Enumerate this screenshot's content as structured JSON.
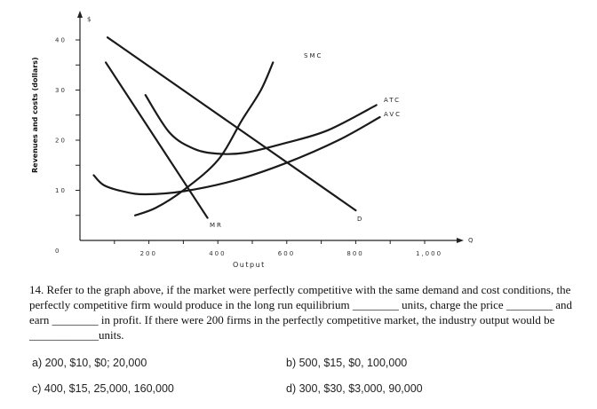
{
  "chart_data": {
    "type": "line",
    "y_axis_symbol": "$",
    "ylabel": "Revenues and costs (dollars)",
    "xlabel": "Output",
    "x_axis_symbol": "Q",
    "y_ticks": [
      "0",
      "10",
      "20",
      "30",
      "40"
    ],
    "x_ticks": [
      "200",
      "400",
      "600",
      "800",
      "1,000"
    ],
    "xlim": [
      0,
      1100
    ],
    "ylim": [
      0,
      45
    ],
    "series": [
      {
        "name": "SMC",
        "points": [
          [
            160,
            5
          ],
          [
            220,
            6.5
          ],
          [
            300,
            10
          ],
          [
            400,
            16
          ],
          [
            470,
            24
          ],
          [
            525,
            30
          ],
          [
            560,
            35.5
          ]
        ]
      },
      {
        "name": "ATC",
        "points": [
          [
            190,
            29
          ],
          [
            260,
            21.5
          ],
          [
            330,
            18.3
          ],
          [
            400,
            17.3
          ],
          [
            480,
            17.5
          ],
          [
            600,
            19.5
          ],
          [
            720,
            22
          ],
          [
            860,
            27
          ]
        ]
      },
      {
        "name": "AVC",
        "points": [
          [
            40,
            13
          ],
          [
            70,
            11
          ],
          [
            130,
            9.7
          ],
          [
            190,
            9.2
          ],
          [
            300,
            9.8
          ],
          [
            450,
            12
          ],
          [
            600,
            15.5
          ],
          [
            750,
            20
          ],
          [
            870,
            24.6
          ]
        ]
      },
      {
        "name": "D",
        "points": [
          [
            80,
            40.5
          ],
          [
            800,
            6
          ]
        ]
      },
      {
        "name": "MR",
        "points": [
          [
            75,
            35.5
          ],
          [
            370,
            4.5
          ]
        ]
      }
    ],
    "labels": {
      "SMC": "SMC",
      "ATC": "ATC",
      "AVC": "AVC",
      "D": "D",
      "MR": "MR"
    }
  },
  "question": {
    "text": "14. Refer to the graph above, if the market were perfectly competitive with the same demand and cost conditions, the perfectly competitive firm would produce in the long run equilibrium ________ units, charge the price ________ and earn ________ in profit. If there were 200 firms in the perfectly competitive market, the industry output would be ____________units."
  },
  "options": {
    "a": "a) 200, $10, $0; 20,000",
    "b": "b) 500, $15, $0, 100,000",
    "c": "c) 400, $15, 25,000, 160,000",
    "d": "d) 300, $30, $3,000, 90,000"
  }
}
